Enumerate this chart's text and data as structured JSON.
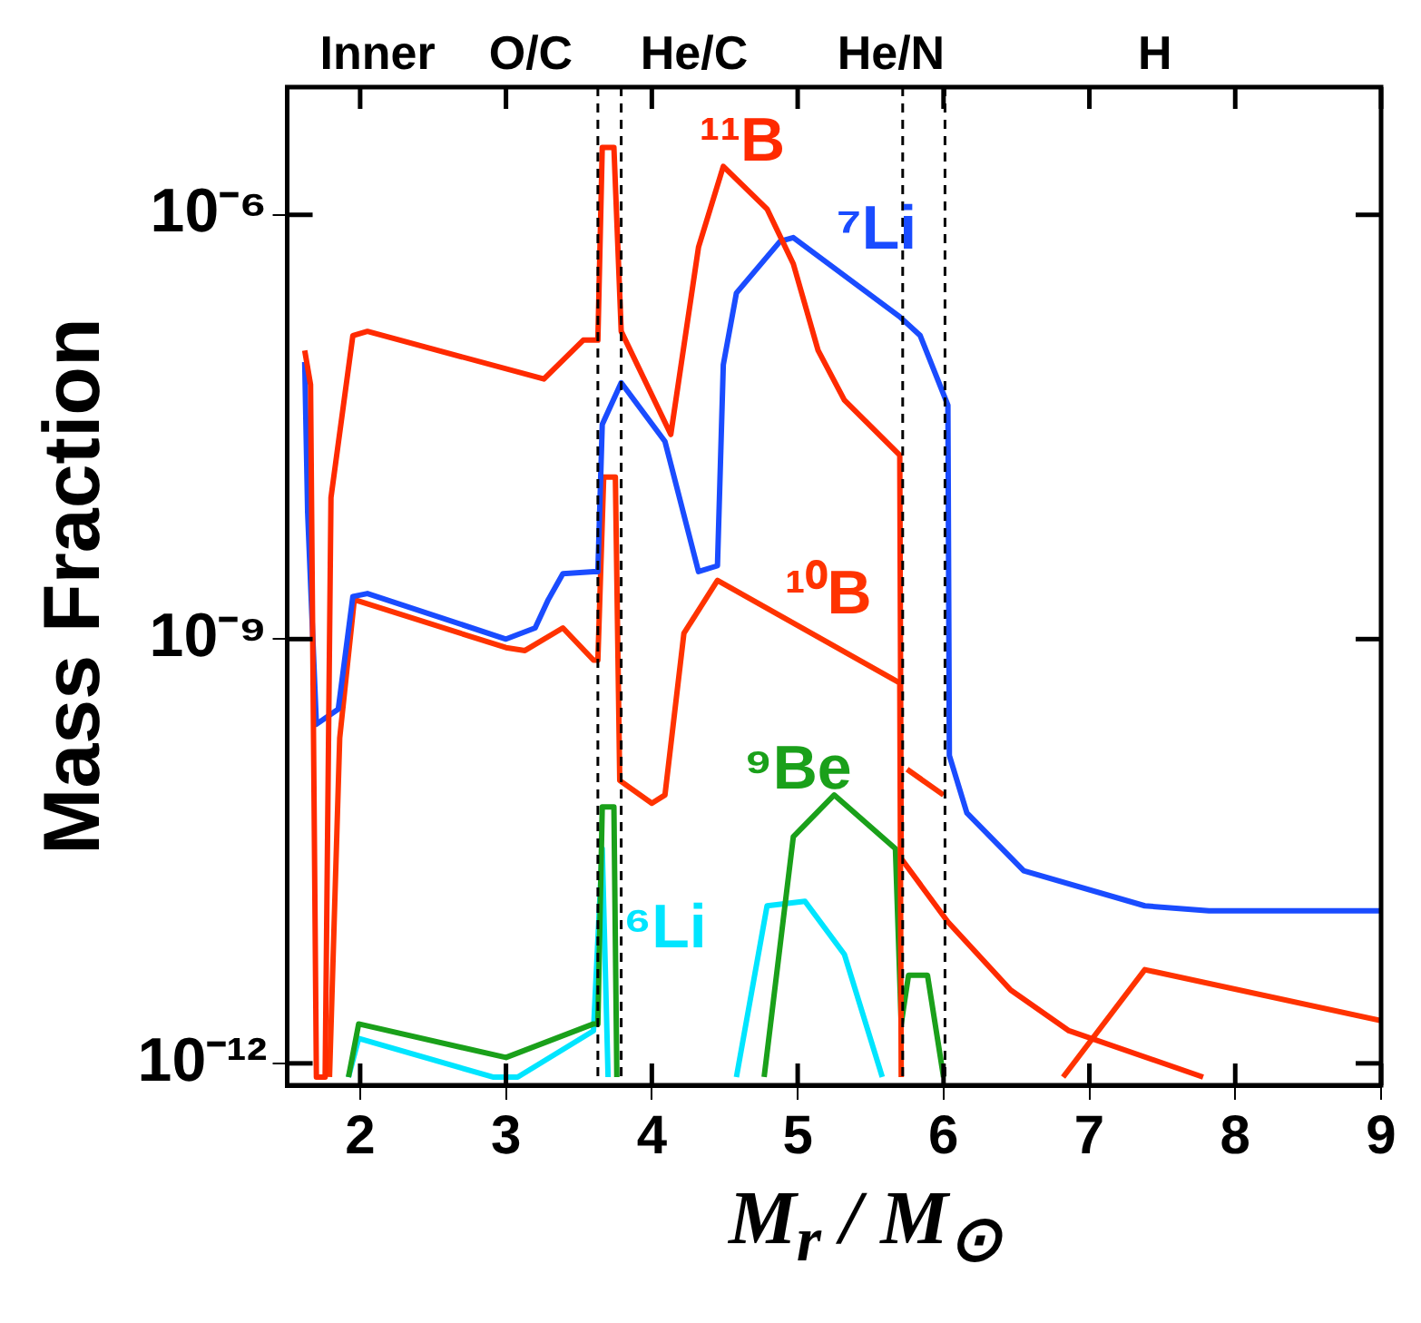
{
  "chart_data": {
    "type": "line",
    "xlabel": "M$_{r}$ / M$_{⊙}$",
    "ylabel": "Mass Fraction",
    "log": "y",
    "xlim": [
      1.5,
      9
    ],
    "xticks": [
      2,
      3,
      4,
      5,
      6,
      7,
      8,
      9
    ],
    "ylim": [
      7e-13,
      8e-06
    ],
    "yticks": [
      {
        "value": 1e-12,
        "label": "10⁻¹²"
      },
      {
        "value": 1e-09,
        "label": "10⁻⁹"
      },
      {
        "value": 1e-06,
        "label": "10⁻⁶"
      }
    ],
    "legend": false,
    "series": [
      {
        "name": "¹¹B",
        "color": "#ff2a00",
        "x": [
          1.62,
          1.66,
          1.7,
          1.76,
          1.8,
          1.95,
          2.05,
          3.26,
          3.53,
          3.63,
          3.66,
          3.74,
          3.79,
          4.13,
          4.32,
          4.49,
          4.79,
          4.97,
          5.14,
          5.32,
          5.7,
          5.71,
          6.03,
          6.46,
          6.86,
          7.78
        ],
        "values": [
          1.1e-07,
          6.3e-08,
          8e-13,
          8e-13,
          1e-08,
          1.4e-07,
          1.5e-07,
          6.9e-08,
          1.3e-07,
          1.3e-07,
          3e-06,
          3e-06,
          1.5e-07,
          2.8e-08,
          5.9e-07,
          2.2e-06,
          1.1e-06,
          4.5e-07,
          1.1e-07,
          4.9e-08,
          2e-08,
          2.8e-11,
          1e-11,
          3.3e-12,
          1.7e-12,
          8e-13
        ]
      },
      {
        "name": "⁷Li",
        "color": "#1a4cff",
        "x": [
          1.62,
          1.64,
          1.7,
          1.85,
          1.95,
          2.05,
          3.0,
          3.2,
          3.29,
          3.39,
          3.6,
          3.63,
          3.66,
          3.79,
          4.09,
          4.32,
          4.45,
          4.49,
          4.58,
          4.88,
          4.97,
          5.7,
          5.84,
          6.03,
          6.04,
          6.16,
          6.55,
          7.38,
          7.82,
          9
        ],
        "values": [
          9.1e-08,
          7.9e-09,
          2.5e-10,
          3.2e-10,
          2e-09,
          2.1e-09,
          1e-09,
          1.2e-09,
          1.9e-09,
          2.9e-09,
          3e-09,
          3e-09,
          3.3e-08,
          6.5e-08,
          2.5e-08,
          3e-09,
          3.3e-09,
          8.7e-08,
          2.8e-07,
          6.5e-07,
          6.9e-07,
          1.9e-07,
          1.4e-07,
          4.5e-08,
          1.5e-10,
          5.9e-11,
          2.3e-11,
          1.3e-11,
          1.2e-11,
          1.2e-11
        ]
      },
      {
        "name": "¹⁰B",
        "color": "#ff3300",
        "x": [
          1.79,
          1.86,
          1.96,
          3.0,
          3.13,
          3.39,
          3.6,
          3.63,
          3.67,
          3.75,
          3.78,
          4.0,
          4.09,
          4.22,
          4.45,
          5.7,
          5.71,
          5.73,
          5.75,
          6.0,
          6.4,
          6.82,
          7.38,
          9
        ],
        "values": [
          8e-13,
          2e-10,
          1.9e-09,
          8.7e-10,
          8.3e-10,
          1.2e-09,
          7.1e-10,
          7.1e-10,
          1.4e-08,
          1.4e-08,
          1e-10,
          6.9e-11,
          7.9e-11,
          1.1e-09,
          2.6e-09,
          4.9e-10,
          8e-13,
          null,
          1.2e-10,
          7.9e-11,
          null,
          8e-13,
          4.6e-12,
          2e-12
        ]
      },
      {
        "name": "⁹Be",
        "color": "#1aa01a",
        "x": [
          1.92,
          1.99,
          3.0,
          3.6,
          3.63,
          3.66,
          3.74,
          3.76,
          3.8,
          4.77,
          4.97,
          5.25,
          5.67,
          5.71,
          5.76,
          5.89,
          6.0
        ],
        "values": [
          8e-13,
          1.9e-12,
          1.1e-12,
          1.9e-12,
          1.9e-12,
          6.5e-11,
          6.5e-11,
          8e-13,
          null,
          8e-13,
          4e-11,
          7.9e-11,
          3.3e-11,
          1.9e-12,
          4.2e-12,
          4.2e-12,
          8e-13
        ]
      },
      {
        "name": "⁶Li",
        "color": "#00e5ff",
        "x": [
          1.92,
          1.99,
          2.91,
          3.08,
          3.6,
          3.66,
          3.7,
          4.0,
          4.58,
          4.79,
          5.05,
          5.32,
          5.58
        ],
        "values": [
          8e-13,
          1.5e-12,
          8e-13,
          8e-13,
          1.7e-12,
          3.3e-11,
          8e-13,
          null,
          8e-13,
          1.3e-11,
          1.4e-11,
          5.9e-12,
          8e-13
        ]
      }
    ],
    "ref_lines": [
      {
        "axis": "x",
        "value": 3.63,
        "color": "#000000",
        "line_style": "dashed"
      },
      {
        "axis": "x",
        "value": 3.79,
        "color": "#000000",
        "line_style": "dashed"
      },
      {
        "axis": "x",
        "value": 5.72,
        "color": "#000000",
        "line_style": "dashed"
      },
      {
        "axis": "x",
        "value": 6.01,
        "color": "#000000",
        "line_style": "dashed"
      }
    ],
    "annotations": [
      "Inner",
      "O/C",
      "He/C",
      "He/N",
      "H"
    ]
  }
}
